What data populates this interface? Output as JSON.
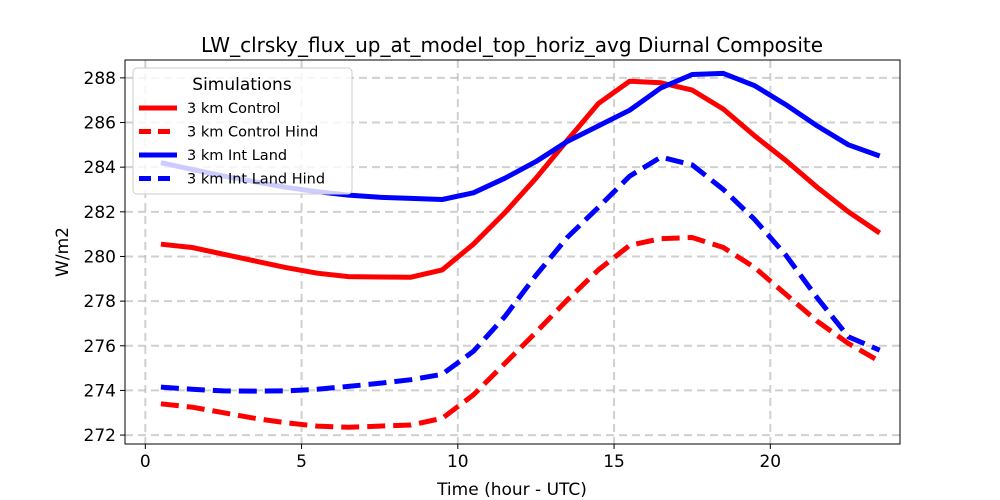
{
  "chart_data": {
    "type": "line",
    "title": "LW_clrsky_flux_up_at_model_top_horiz_avg Diurnal Composite",
    "xlabel": "Time (hour - UTC)",
    "ylabel": "W/m2",
    "xlim": [
      -0.65,
      24.15
    ],
    "ylim": [
      271.6,
      288.8
    ],
    "xticks": [
      0,
      5,
      10,
      15,
      20
    ],
    "yticks": [
      272,
      274,
      276,
      278,
      280,
      282,
      284,
      286,
      288
    ],
    "grid": true,
    "legend": {
      "title": "Simulations",
      "placement": "top-left"
    },
    "x": [
      0.5,
      1.5,
      2.5,
      3.5,
      4.5,
      5.5,
      6.5,
      7.5,
      8.5,
      9.5,
      10.5,
      11.5,
      12.5,
      13.5,
      14.5,
      15.5,
      16.5,
      17.5,
      18.5,
      19.5,
      20.5,
      21.5,
      22.5,
      23.5
    ],
    "series": [
      {
        "name": "3 km Control",
        "color": "#ff0000",
        "dash": "solid",
        "values": [
          280.55,
          280.4,
          280.1,
          279.8,
          279.5,
          279.25,
          279.1,
          279.08,
          279.07,
          279.4,
          280.55,
          281.95,
          283.5,
          285.2,
          286.85,
          287.85,
          287.78,
          287.45,
          286.6,
          285.4,
          284.3,
          283.1,
          282.0,
          281.05
        ]
      },
      {
        "name": "3 km Control Hind",
        "color": "#ff0000",
        "dash": "dashed",
        "values": [
          273.4,
          273.25,
          273.0,
          272.75,
          272.55,
          272.4,
          272.35,
          272.4,
          272.45,
          272.75,
          273.8,
          275.2,
          276.6,
          278.05,
          279.4,
          280.5,
          280.8,
          280.85,
          280.4,
          279.5,
          278.3,
          277.1,
          276.1,
          275.3
        ]
      },
      {
        "name": "3 km Int Land",
        "color": "#0000ff",
        "dash": "solid",
        "values": [
          284.2,
          283.9,
          283.6,
          283.35,
          283.1,
          282.9,
          282.75,
          282.65,
          282.6,
          282.55,
          282.85,
          283.5,
          284.25,
          285.15,
          285.85,
          286.55,
          287.55,
          288.15,
          288.2,
          287.65,
          286.8,
          285.85,
          285.0,
          284.5
        ]
      },
      {
        "name": "3 km Int Land Hind",
        "color": "#0000ff",
        "dash": "dashed",
        "values": [
          274.15,
          274.05,
          273.98,
          273.97,
          273.98,
          274.05,
          274.18,
          274.32,
          274.48,
          274.72,
          275.75,
          277.3,
          279.15,
          280.85,
          282.2,
          283.6,
          284.45,
          284.1,
          283.0,
          281.65,
          280.05,
          278.15,
          276.4,
          275.8
        ]
      }
    ]
  }
}
